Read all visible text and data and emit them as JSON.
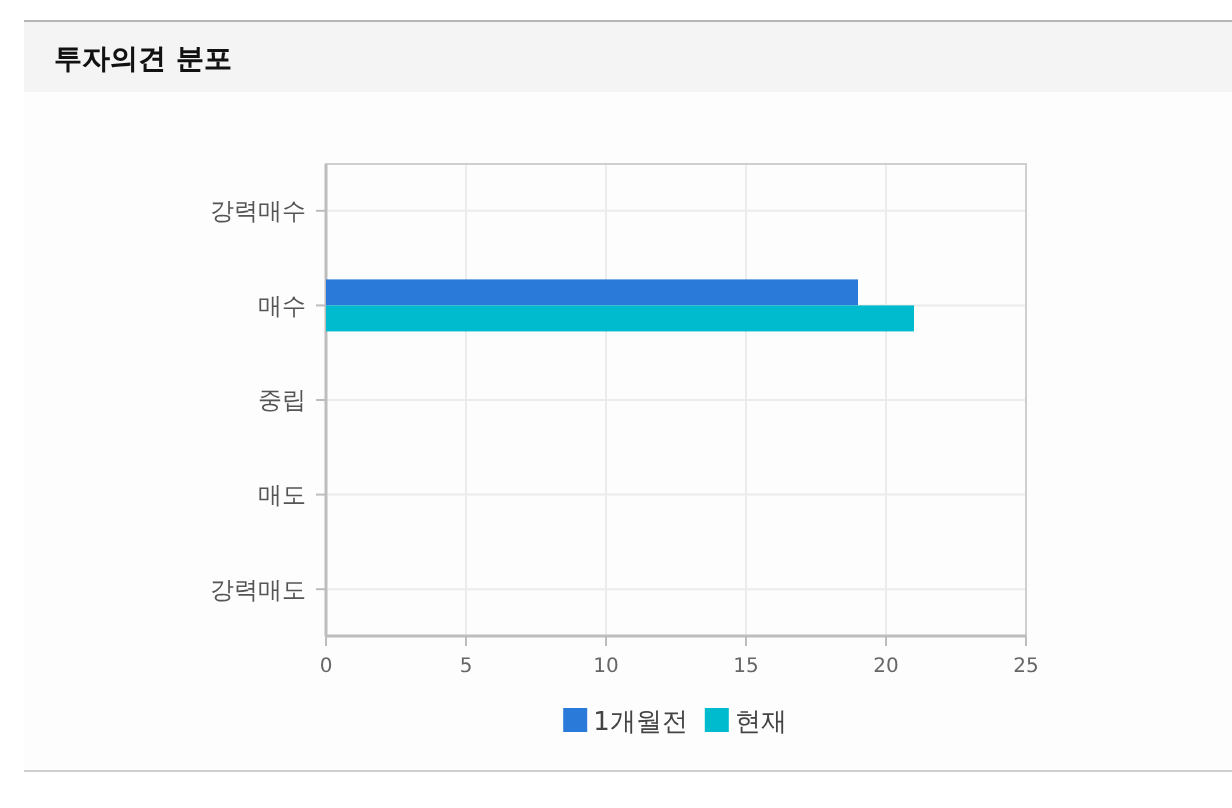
{
  "chart_data": {
    "type": "bar",
    "title": "투자의견 분포",
    "orientation": "horizontal",
    "categories": [
      "강력매수",
      "매수",
      "중립",
      "매도",
      "강력매도"
    ],
    "series": [
      {
        "name": "1개월전",
        "color": "#2a7ad9",
        "values": [
          0,
          19,
          0,
          0,
          0
        ]
      },
      {
        "name": "현재",
        "color": "#00bacd",
        "values": [
          0,
          21,
          0,
          0,
          0
        ]
      }
    ],
    "xlim": [
      0,
      25
    ],
    "xticks": [
      0,
      5,
      10,
      15,
      20,
      25
    ],
    "grid": true,
    "legend": "bottom"
  }
}
